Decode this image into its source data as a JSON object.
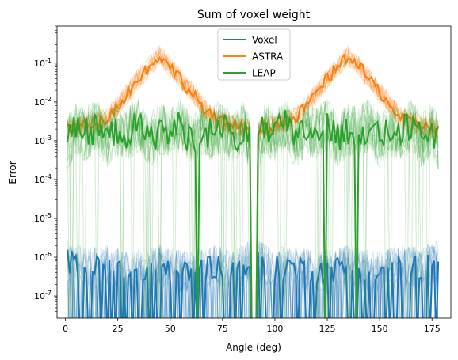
{
  "chart_data": {
    "type": "line",
    "title": "Sum of voxel weight",
    "xlabel": "Angle (deg)",
    "ylabel": "Error",
    "xlim": [
      -4,
      184
    ],
    "ylim": [
      2.7e-08,
      0.9
    ],
    "yscale": "log",
    "grid": false,
    "legend_position": "top-center",
    "x_ticks": [
      0,
      25,
      50,
      75,
      100,
      125,
      150,
      175
    ],
    "x_tick_labels": [
      "0",
      "25",
      "50",
      "75",
      "100",
      "125",
      "150",
      "175"
    ],
    "y_ticks": [
      1e-07,
      1e-06,
      1e-05,
      0.0001,
      0.001,
      0.01,
      0.1
    ],
    "y_tick_labels": [
      "10^-7",
      "10^-6",
      "10^-5",
      "10^-4",
      "10^-3",
      "10^-2",
      "10^-1"
    ],
    "series": [
      {
        "name": "Voxel",
        "color": "#1f77b4",
        "style": "many faint repeated runs plus one bold run",
        "x": [
          1,
          10,
          20,
          30,
          40,
          45,
          50,
          60,
          70,
          80,
          88,
          92,
          100,
          110,
          120,
          130,
          135,
          140,
          150,
          160,
          170,
          178
        ],
        "y": [
          8e-07,
          5e-07,
          6e-07,
          4e-07,
          5e-07,
          6e-07,
          5e-07,
          4e-07,
          6e-07,
          5e-07,
          8e-07,
          8e-07,
          5e-07,
          6e-07,
          4e-07,
          5e-07,
          6e-07,
          5e-07,
          4e-07,
          6e-07,
          5e-07,
          8e-07
        ]
      },
      {
        "name": "ASTRA",
        "color": "#ff7f0e",
        "style": "many faint repeated runs plus one bold run",
        "x": [
          1,
          10,
          15,
          20,
          25,
          30,
          35,
          40,
          45,
          50,
          55,
          60,
          65,
          70,
          75,
          80,
          88,
          92,
          100,
          105,
          110,
          115,
          120,
          125,
          130,
          135,
          140,
          145,
          150,
          155,
          160,
          165,
          170,
          178
        ],
        "y": [
          0.002,
          0.0025,
          0.003,
          0.004,
          0.008,
          0.018,
          0.04,
          0.08,
          0.16,
          0.08,
          0.04,
          0.018,
          0.008,
          0.004,
          0.003,
          0.0025,
          0.002,
          0.002,
          0.0025,
          0.003,
          0.004,
          0.008,
          0.018,
          0.04,
          0.08,
          0.16,
          0.08,
          0.04,
          0.018,
          0.008,
          0.004,
          0.003,
          0.0025,
          0.002
        ]
      },
      {
        "name": "LEAP",
        "color": "#2ca02c",
        "style": "many faint repeated runs plus one bold run",
        "x": [
          1,
          5,
          10,
          15,
          20,
          25,
          30,
          35,
          40,
          45,
          50,
          55,
          60,
          65,
          70,
          75,
          80,
          85,
          88,
          92,
          95,
          100,
          105,
          110,
          115,
          120,
          125,
          130,
          135,
          140,
          145,
          150,
          155,
          160,
          165,
          170,
          175,
          178
        ],
        "y": [
          0.0009,
          0.002,
          0.0015,
          0.0025,
          0.001,
          0.002,
          0.0015,
          0.0025,
          0.001,
          0.002,
          0.0015,
          0.0025,
          0.001,
          0.002,
          0.0015,
          0.0025,
          0.001,
          0.002,
          0.0009,
          0.0009,
          0.002,
          0.0015,
          0.0025,
          0.001,
          0.002,
          0.0015,
          0.0025,
          0.001,
          0.002,
          0.0015,
          0.0025,
          0.001,
          0.002,
          0.0015,
          0.0025,
          0.001,
          0.002,
          0.0009
        ]
      }
    ]
  }
}
